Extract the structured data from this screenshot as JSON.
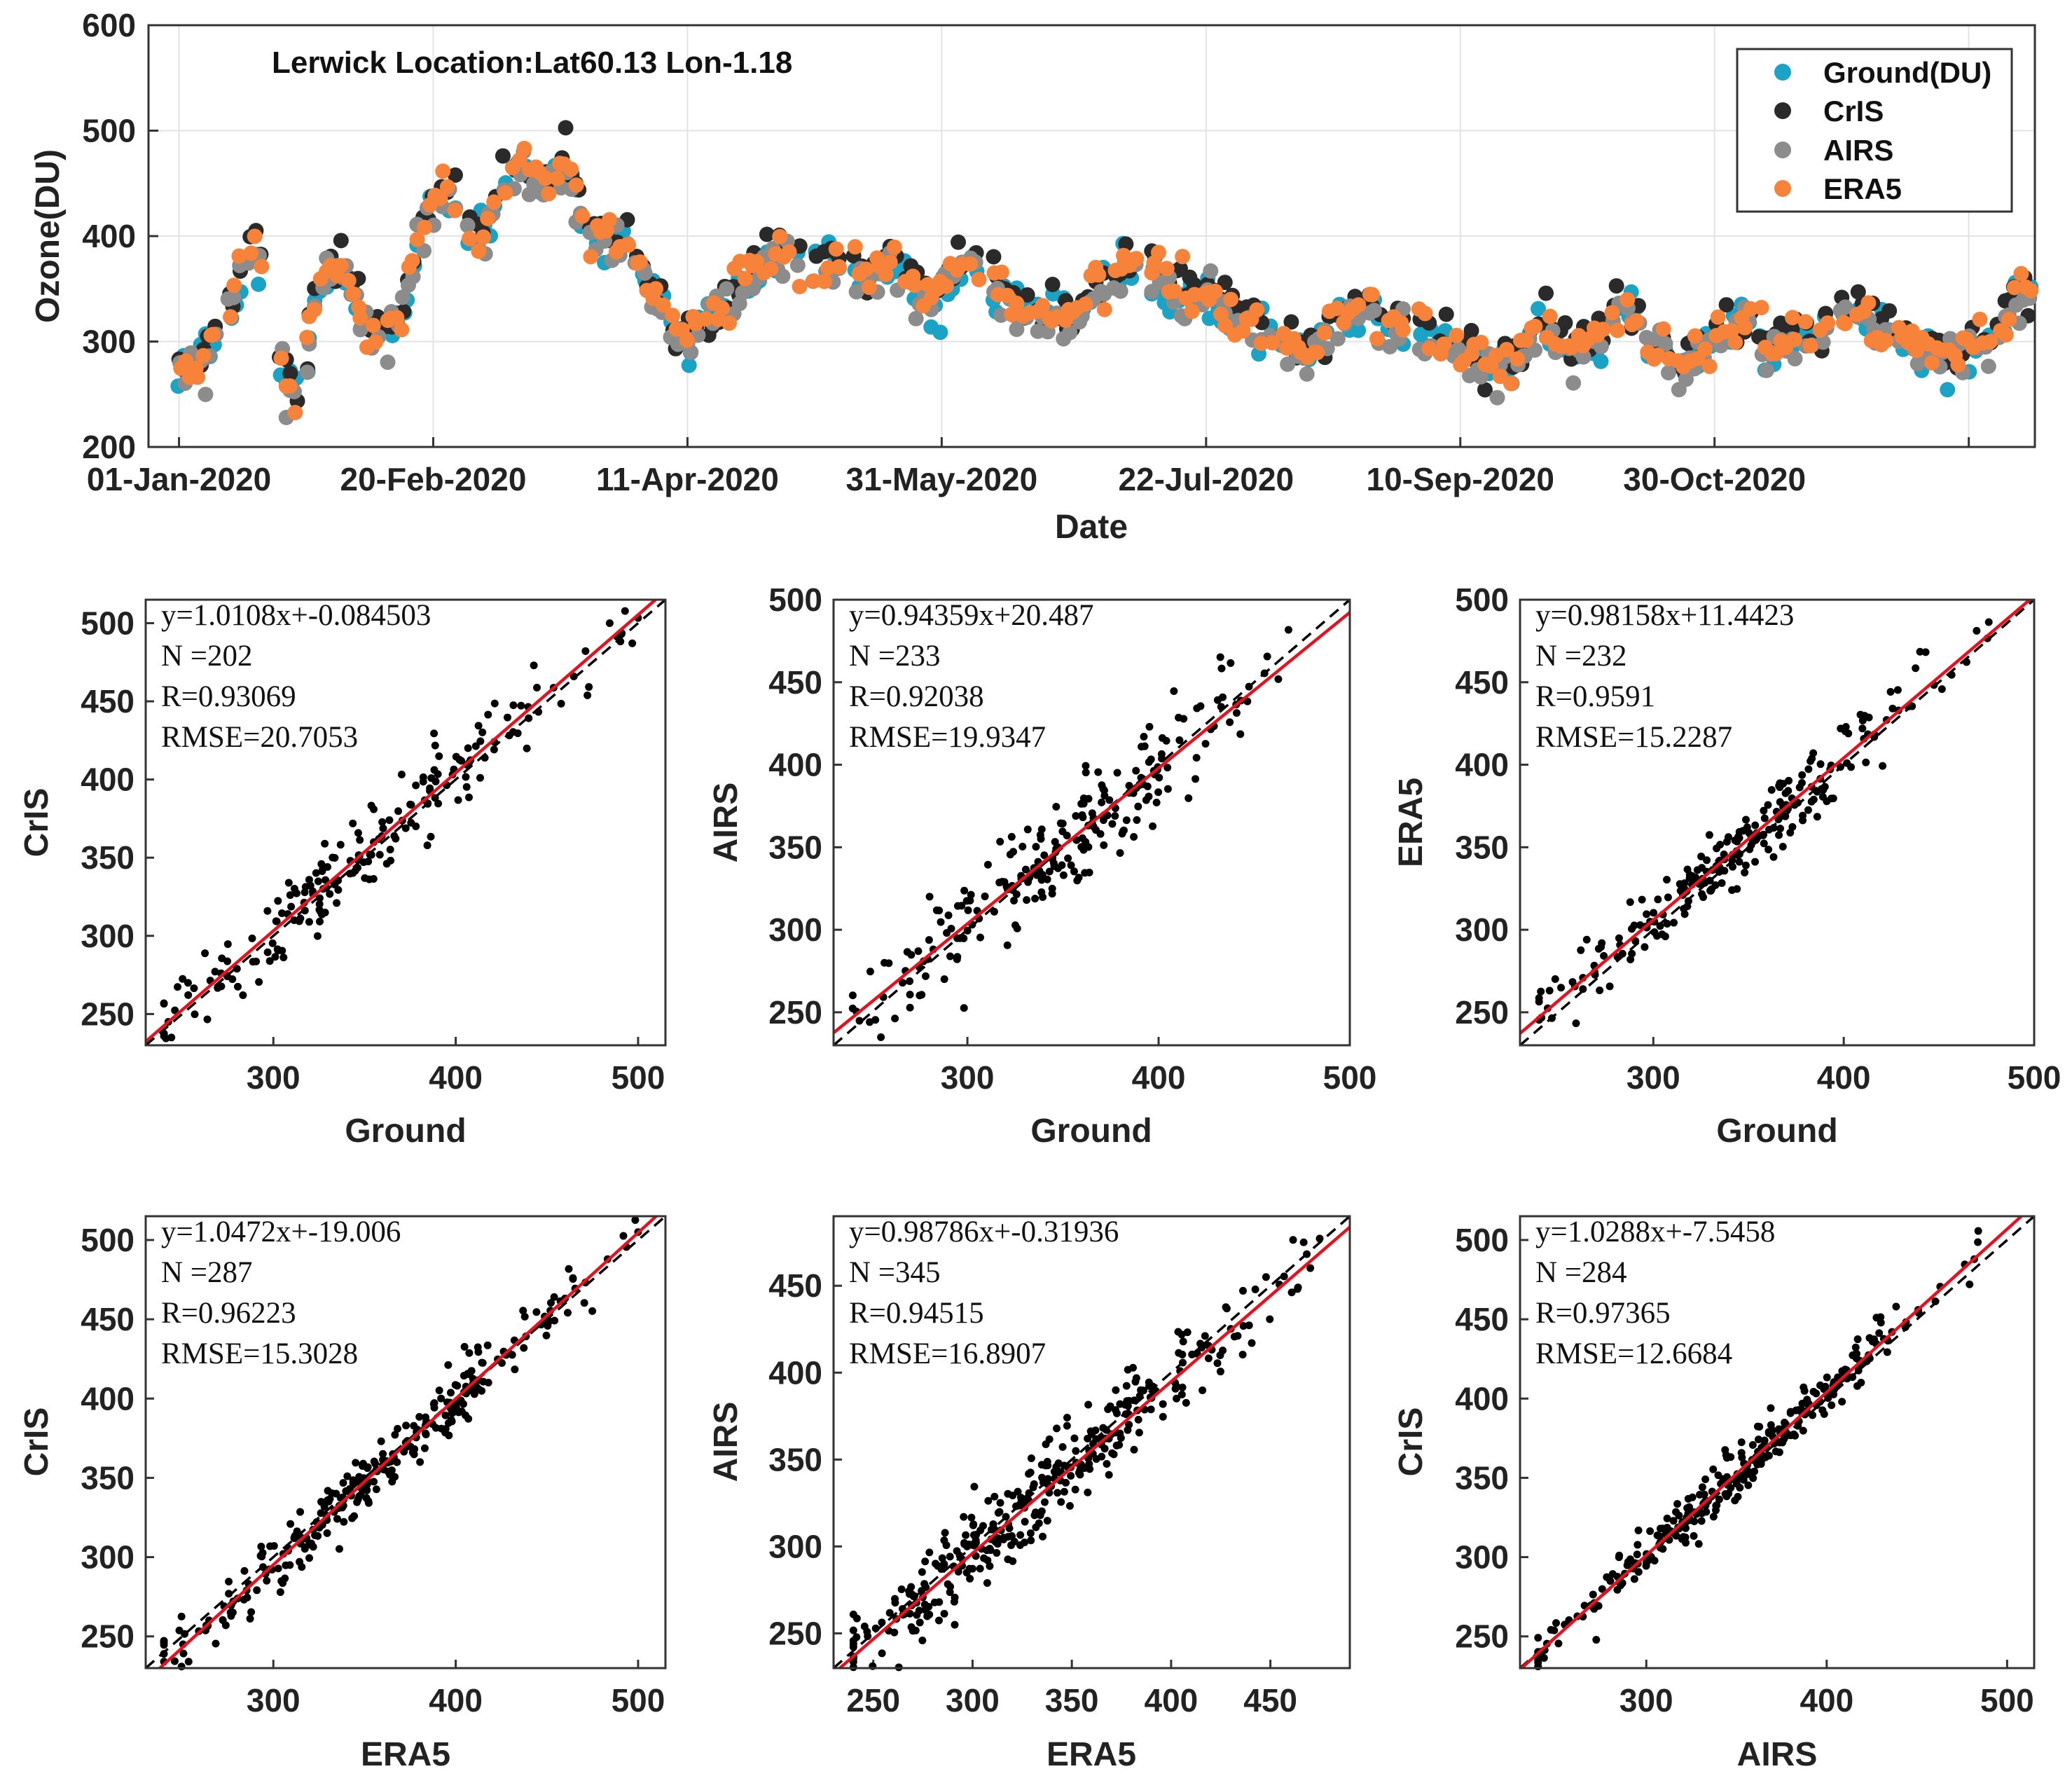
{
  "chart_data": [
    {
      "type": "scatter",
      "id": "timeseries",
      "title": "Lerwick Location:Lat60.13 Lon-1.18",
      "xlabel": "Date",
      "ylabel": "Ozone(DU)",
      "ylim": [
        200,
        600
      ],
      "yticks": [
        200,
        300,
        400,
        500,
        600
      ],
      "xlim_day": [
        -6,
        365
      ],
      "xticks": [
        {
          "day": 0,
          "label": "01-Jan-2020"
        },
        {
          "day": 50,
          "label": "20-Feb-2020"
        },
        {
          "day": 100,
          "label": "11-Apr-2020"
        },
        {
          "day": 150,
          "label": "31-May-2020"
        },
        {
          "day": 202,
          "label": "22-Jul-2020"
        },
        {
          "day": 252,
          "label": "10-Sep-2020"
        },
        {
          "day": 302,
          "label": "30-Oct-2020"
        },
        {
          "day": 352,
          "label": ""
        }
      ],
      "grid": true,
      "legend_position": "top-right",
      "series": [
        {
          "name": "Ground(DU)",
          "color": "#1ba3c6",
          "offset": 0
        },
        {
          "name": "CrIS",
          "color": "#2a2a2a",
          "offset": 6
        },
        {
          "name": "AIRS",
          "color": "#8c8c8c",
          "offset": -5
        },
        {
          "name": "ERA5",
          "color": "#f7823a",
          "offset": 3
        }
      ],
      "baseline_curve": [
        [
          0,
          268
        ],
        [
          5,
          285
        ],
        [
          10,
          330
        ],
        [
          12,
          370
        ],
        [
          15,
          395
        ],
        [
          18,
          330
        ],
        [
          21,
          255
        ],
        [
          24,
          240
        ],
        [
          27,
          340
        ],
        [
          32,
          370
        ],
        [
          36,
          320
        ],
        [
          40,
          300
        ],
        [
          44,
          330
        ],
        [
          48,
          420
        ],
        [
          52,
          440
        ],
        [
          56,
          410
        ],
        [
          60,
          400
        ],
        [
          64,
          450
        ],
        [
          68,
          470
        ],
        [
          72,
          440
        ],
        [
          76,
          470
        ],
        [
          80,
          410
        ],
        [
          84,
          395
        ],
        [
          88,
          390
        ],
        [
          92,
          360
        ],
        [
          96,
          320
        ],
        [
          100,
          300
        ],
        [
          104,
          320
        ],
        [
          108,
          330
        ],
        [
          112,
          360
        ],
        [
          116,
          380
        ],
        [
          120,
          390
        ],
        [
          124,
          360
        ],
        [
          128,
          375
        ],
        [
          132,
          370
        ],
        [
          136,
          360
        ],
        [
          140,
          380
        ],
        [
          144,
          350
        ],
        [
          148,
          340
        ],
        [
          152,
          360
        ],
        [
          156,
          380
        ],
        [
          160,
          360
        ],
        [
          164,
          330
        ],
        [
          168,
          320
        ],
        [
          172,
          330
        ],
        [
          176,
          320
        ],
        [
          180,
          350
        ],
        [
          184,
          360
        ],
        [
          188,
          370
        ],
        [
          192,
          360
        ],
        [
          196,
          350
        ],
        [
          200,
          345
        ],
        [
          204,
          335
        ],
        [
          208,
          325
        ],
        [
          212,
          310
        ],
        [
          216,
          300
        ],
        [
          220,
          290
        ],
        [
          224,
          300
        ],
        [
          228,
          320
        ],
        [
          232,
          330
        ],
        [
          236,
          320
        ],
        [
          240,
          315
        ],
        [
          244,
          310
        ],
        [
          248,
          300
        ],
        [
          252,
          290
        ],
        [
          256,
          280
        ],
        [
          260,
          275
        ],
        [
          264,
          290
        ],
        [
          268,
          320
        ],
        [
          272,
          300
        ],
        [
          276,
          290
        ],
        [
          280,
          310
        ],
        [
          284,
          340
        ],
        [
          288,
          300
        ],
        [
          292,
          290
        ],
        [
          296,
          285
        ],
        [
          300,
          295
        ],
        [
          304,
          310
        ],
        [
          308,
          320
        ],
        [
          312,
          290
        ],
        [
          316,
          300
        ],
        [
          320,
          310
        ],
        [
          324,
          300
        ],
        [
          328,
          330
        ],
        [
          332,
          320
        ],
        [
          336,
          310
        ],
        [
          340,
          300
        ],
        [
          344,
          290
        ],
        [
          348,
          285
        ],
        [
          352,
          290
        ],
        [
          356,
          300
        ],
        [
          360,
          330
        ],
        [
          364,
          345
        ]
      ]
    },
    {
      "type": "scatter",
      "id": "s1",
      "xlabel": "Ground",
      "ylabel": "CrIS",
      "xlim": [
        230,
        515
      ],
      "ylim": [
        230,
        515
      ],
      "xticks": [
        300,
        400,
        500
      ],
      "yticks": [
        250,
        300,
        350,
        400,
        450,
        500
      ],
      "fit": {
        "slope": 1.0108,
        "intercept": -0.084503
      },
      "n": 202,
      "spread": 14,
      "stats": [
        "y=1.0108x+-0.084503",
        "N  =202",
        "R=0.93069",
        "RMSE=20.7053"
      ]
    },
    {
      "type": "scatter",
      "id": "s2",
      "xlabel": "Ground",
      "ylabel": "AIRS",
      "xlim": [
        230,
        500
      ],
      "ylim": [
        230,
        500
      ],
      "xticks": [
        300,
        400,
        500
      ],
      "yticks": [
        250,
        300,
        350,
        400,
        450,
        500
      ],
      "fit": {
        "slope": 0.94359,
        "intercept": 20.487
      },
      "n": 233,
      "spread": 15,
      "stats": [
        "y=0.94359x+20.487",
        "N  =233",
        "R=0.92038",
        "RMSE=19.9347"
      ]
    },
    {
      "type": "scatter",
      "id": "s3",
      "xlabel": "Ground",
      "ylabel": "ERA5",
      "xlim": [
        230,
        500
      ],
      "ylim": [
        230,
        500
      ],
      "xticks": [
        300,
        400,
        500
      ],
      "yticks": [
        250,
        300,
        350,
        400,
        450,
        500
      ],
      "fit": {
        "slope": 0.98158,
        "intercept": 11.4423
      },
      "n": 232,
      "spread": 10,
      "stats": [
        "y=0.98158x+11.4423",
        "N  =232",
        "R=0.9591",
        "RMSE=15.2287"
      ]
    },
    {
      "type": "scatter",
      "id": "s4",
      "xlabel": "ERA5",
      "ylabel": "CrIS",
      "xlim": [
        230,
        515
      ],
      "ylim": [
        230,
        515
      ],
      "xticks": [
        300,
        400,
        500
      ],
      "yticks": [
        250,
        300,
        350,
        400,
        450,
        500
      ],
      "fit": {
        "slope": 1.0472,
        "intercept": -19.006
      },
      "n": 287,
      "spread": 10,
      "stats": [
        "y=1.0472x+-19.006",
        "N  =287",
        "R=0.96223",
        "RMSE=15.3028"
      ]
    },
    {
      "type": "scatter",
      "id": "s5",
      "xlabel": "ERA5",
      "ylabel": "AIRS",
      "xlim": [
        230,
        490
      ],
      "ylim": [
        230,
        490
      ],
      "xticks": [
        250,
        300,
        350,
        400,
        450
      ],
      "yticks": [
        250,
        300,
        350,
        400,
        450
      ],
      "fit": {
        "slope": 0.98786,
        "intercept": -0.31936
      },
      "n": 345,
      "spread": 12,
      "stats": [
        "y=0.98786x+-0.31936",
        "N  =345",
        "R=0.94515",
        "RMSE=16.8907"
      ]
    },
    {
      "type": "scatter",
      "id": "s6",
      "xlabel": "AIRS",
      "ylabel": "CrIS",
      "xlim": [
        230,
        515
      ],
      "ylim": [
        230,
        515
      ],
      "xticks": [
        300,
        400,
        500
      ],
      "yticks": [
        250,
        300,
        350,
        400,
        450,
        500
      ],
      "fit": {
        "slope": 1.0288,
        "intercept": -7.5458
      },
      "n": 284,
      "spread": 8,
      "stats": [
        "y=1.0288x+-7.5458",
        "N  =284",
        "R=0.97365",
        "RMSE=12.6684"
      ]
    }
  ]
}
